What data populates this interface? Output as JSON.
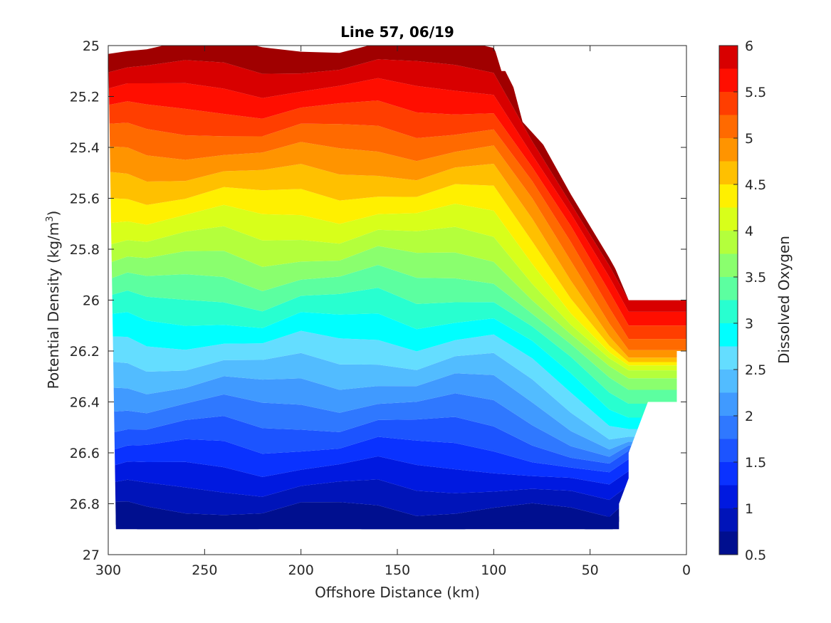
{
  "chart_data": {
    "type": "heatmap",
    "subtype": "filled-contour",
    "title": "Line 57, 06/19",
    "xlabel": "Offshore Distance (km)",
    "ylabel_main": "Potential Density (kg/m",
    "ylabel_sup": "3",
    "ylabel_end": ")",
    "colorbar_label": "Dissolved Oxygen",
    "x_reversed": true,
    "xlim": [
      0,
      300
    ],
    "ylim": [
      25,
      27
    ],
    "y_reversed": true,
    "x_ticks": [
      300,
      250,
      200,
      150,
      100,
      50,
      0
    ],
    "x_tick_labels": [
      "300",
      "250",
      "200",
      "150",
      "100",
      "50",
      "0"
    ],
    "y_ticks": [
      25,
      25.2,
      25.4,
      25.6,
      25.8,
      26,
      26.2,
      26.4,
      26.6,
      26.8,
      27
    ],
    "y_tick_labels": [
      "25",
      "25.2",
      "25.4",
      "25.6",
      "25.8",
      "26",
      "26.2",
      "26.4",
      "26.6",
      "26.8",
      "27"
    ],
    "colorbar_range": [
      0.5,
      6
    ],
    "colorbar_ticks": [
      0.5,
      1,
      1.5,
      2,
      2.5,
      3,
      3.5,
      4,
      4.5,
      5,
      5.5,
      6
    ],
    "colorbar_tick_labels": [
      "0.5",
      "1",
      "1.5",
      "2",
      "2.5",
      "3",
      "3.5",
      "4",
      "4.5",
      "5",
      "5.5",
      "6"
    ],
    "contour_levels": [
      0.5,
      0.75,
      1,
      1.25,
      1.5,
      1.75,
      2,
      2.25,
      2.5,
      2.75,
      3,
      3.25,
      3.5,
      3.75,
      4,
      4.25,
      4.5,
      4.75,
      5,
      5.25,
      5.5,
      5.75,
      6
    ],
    "level_colors": [
      "#000f8f",
      "#0014b9",
      "#0019e0",
      "#0a32ff",
      "#1c54ff",
      "#2f78ff",
      "#409aff",
      "#52bcff",
      "#64ddff",
      "#00ffff",
      "#28ffd0",
      "#5cffa0",
      "#8aff6e",
      "#b4ff3c",
      "#d8ff1a",
      "#fff000",
      "#ffc000",
      "#ff9400",
      "#ff6a00",
      "#ff3e00",
      "#ff0e00",
      "#d80000",
      "#a00000"
    ],
    "data_extent": {
      "top_edge": [
        [
          300,
          25
        ],
        [
          100,
          25
        ],
        [
          96,
          25.1
        ],
        [
          92,
          25.1
        ],
        [
          85,
          25.3
        ],
        [
          73,
          25.4
        ],
        [
          65,
          25.5
        ],
        [
          58,
          25.5
        ],
        [
          30,
          26
        ],
        [
          0,
          26
        ]
      ],
      "bottom_edge": [
        [
          296,
          26.9
        ],
        [
          35,
          26.9
        ],
        [
          35,
          26.8
        ],
        [
          30,
          26.7
        ],
        [
          30,
          26.6
        ],
        [
          20,
          26.4
        ],
        [
          5,
          26.4
        ],
        [
          5,
          26.2
        ],
        [
          0,
          26.2
        ]
      ],
      "left_edge": [
        [
          300,
          25
        ],
        [
          300,
          26.8
        ],
        [
          296,
          26.9
        ]
      ]
    },
    "contour_profiles": {
      "x": [
        300,
        290,
        280,
        260,
        240,
        220,
        200,
        180,
        160,
        140,
        120,
        100,
        80,
        60,
        40,
        30
      ],
      "depth_offsets": [
        0.3,
        0.25,
        0.35,
        0.3,
        0.22,
        0.36,
        0.22,
        0.3,
        0.18,
        0.32,
        0.2,
        0.24,
        0.2,
        0.2,
        0.15,
        0.2
      ]
    }
  }
}
